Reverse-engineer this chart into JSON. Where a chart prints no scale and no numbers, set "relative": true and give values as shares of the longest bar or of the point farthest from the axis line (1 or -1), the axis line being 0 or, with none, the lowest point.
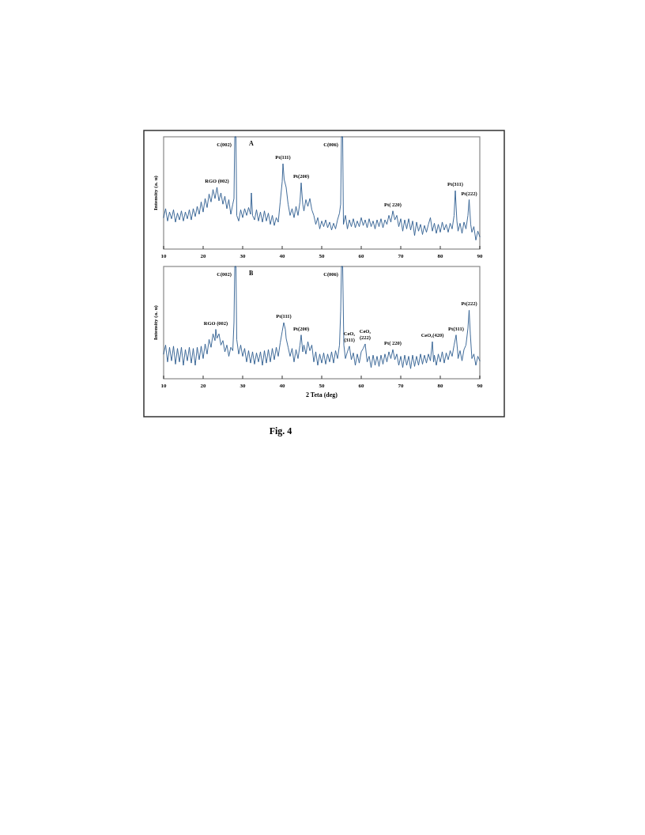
{
  "chart_data": [
    {
      "type": "line",
      "title": "A",
      "ylabel": "Intensity (a. u)",
      "relative": true,
      "color": "#2b5b8e",
      "xlim": [
        10,
        90
      ],
      "xticks": [
        10,
        20,
        30,
        40,
        50,
        60,
        70,
        80,
        90
      ],
      "x": [
        10,
        10.5,
        11,
        11.5,
        12,
        12.5,
        13,
        13.5,
        14,
        14.5,
        15,
        15.5,
        16,
        16.5,
        17,
        17.5,
        18,
        18.5,
        19,
        19.5,
        20,
        20.5,
        21,
        21.5,
        22,
        22.5,
        23,
        23.5,
        24,
        24.5,
        25,
        25.5,
        26,
        26.5,
        27,
        27.5,
        27.8,
        28,
        28.3,
        28.5,
        29,
        29.5,
        30,
        30.5,
        31,
        31.5,
        32,
        32.2,
        32.5,
        33,
        33.5,
        34,
        34.5,
        35,
        35.5,
        36,
        36.5,
        37,
        37.5,
        38,
        38.5,
        39,
        39.5,
        40,
        40.2,
        40.5,
        41,
        41.5,
        42,
        42.5,
        43,
        43.5,
        44,
        44.5,
        44.8,
        45.2,
        45.5,
        46,
        46.5,
        47,
        47.5,
        48,
        48.5,
        49,
        49.5,
        50,
        50.5,
        51,
        51.5,
        52,
        52.5,
        53,
        53.5,
        54,
        54.5,
        54.8,
        55,
        55.3,
        55.5,
        56,
        56.5,
        57,
        57.5,
        58,
        58.5,
        59,
        59.5,
        60,
        60.5,
        61,
        61.5,
        62,
        62.5,
        63,
        63.5,
        64,
        64.5,
        65,
        65.5,
        66,
        66.5,
        67,
        67.5,
        68,
        68.5,
        69,
        69.5,
        70,
        70.5,
        71,
        71.5,
        72,
        72.5,
        73,
        73.5,
        74,
        74.5,
        75,
        75.5,
        76,
        76.5,
        77,
        77.5,
        78,
        78.5,
        79,
        79.5,
        80,
        80.5,
        81,
        81.5,
        82,
        82.5,
        83,
        83.5,
        83.8,
        84.2,
        84.5,
        85,
        85.5,
        86,
        86.5,
        87,
        87.3,
        87.7,
        88,
        88.5,
        89,
        89.5,
        90
      ],
      "values": [
        0.28,
        0.36,
        0.25,
        0.33,
        0.27,
        0.35,
        0.24,
        0.32,
        0.26,
        0.34,
        0.25,
        0.33,
        0.27,
        0.35,
        0.26,
        0.36,
        0.29,
        0.38,
        0.31,
        0.42,
        0.33,
        0.45,
        0.37,
        0.49,
        0.42,
        0.53,
        0.45,
        0.55,
        0.43,
        0.5,
        0.4,
        0.47,
        0.36,
        0.44,
        0.31,
        0.4,
        0.45,
        1,
        1,
        0.3,
        0.25,
        0.35,
        0.28,
        0.36,
        0.3,
        0.37,
        0.31,
        0.5,
        0.3,
        0.26,
        0.35,
        0.25,
        0.33,
        0.24,
        0.34,
        0.25,
        0.32,
        0.22,
        0.3,
        0.21,
        0.28,
        0.24,
        0.42,
        0.6,
        0.76,
        0.62,
        0.55,
        0.4,
        0.3,
        0.36,
        0.28,
        0.38,
        0.3,
        0.42,
        0.59,
        0.4,
        0.34,
        0.44,
        0.38,
        0.45,
        0.35,
        0.3,
        0.22,
        0.28,
        0.18,
        0.25,
        0.2,
        0.26,
        0.19,
        0.24,
        0.17,
        0.23,
        0.18,
        0.26,
        0.32,
        0.4,
        1,
        1,
        0.22,
        0.3,
        0.18,
        0.26,
        0.2,
        0.27,
        0.19,
        0.25,
        0.2,
        0.28,
        0.21,
        0.26,
        0.19,
        0.27,
        0.2,
        0.25,
        0.18,
        0.26,
        0.2,
        0.27,
        0.19,
        0.26,
        0.22,
        0.3,
        0.24,
        0.34,
        0.26,
        0.3,
        0.2,
        0.27,
        0.16,
        0.26,
        0.18,
        0.27,
        0.17,
        0.25,
        0.12,
        0.24,
        0.16,
        0.22,
        0.13,
        0.21,
        0.15,
        0.22,
        0.28,
        0.16,
        0.23,
        0.14,
        0.22,
        0.15,
        0.24,
        0.17,
        0.22,
        0.15,
        0.23,
        0.18,
        0.3,
        0.52,
        0.25,
        0.16,
        0.23,
        0.14,
        0.24,
        0.18,
        0.3,
        0.44,
        0.22,
        0.15,
        0.2,
        0.08,
        0.16,
        0.11
      ],
      "annotations": [
        {
          "text": "RGO (002)",
          "x": 23.5,
          "y": 0.55
        },
        {
          "text": "C(002)",
          "x": 28,
          "y": 1
        },
        {
          "text": "C(006)",
          "x": 55,
          "y": 1
        },
        {
          "text": "Pt(111)",
          "x": 40.2,
          "y": 0.76
        },
        {
          "text": "Pt(200)",
          "x": 44.8,
          "y": 0.59
        },
        {
          "text": "Pt( 220)",
          "x": 68,
          "y": 0.34
        },
        {
          "text": "Pt(311)",
          "x": 83.8,
          "y": 0.52
        },
        {
          "text": "Pt(222)",
          "x": 87.3,
          "y": 0.44
        }
      ]
    },
    {
      "type": "line",
      "title": "B",
      "ylabel": "Intensity (a. u)",
      "xlabel": "2 Teta (deg)",
      "relative": true,
      "color": "#2b5b8e",
      "xlim": [
        10,
        90
      ],
      "xticks": [
        10,
        20,
        30,
        40,
        50,
        60,
        70,
        80,
        90
      ],
      "x": [
        10,
        10.5,
        11,
        11.5,
        12,
        12.5,
        13,
        13.5,
        14,
        14.5,
        15,
        15.5,
        16,
        16.5,
        17,
        17.5,
        18,
        18.5,
        19,
        19.5,
        20,
        20.5,
        21,
        21.5,
        22,
        22.5,
        23,
        23.2,
        23.5,
        24,
        24.5,
        25,
        25.5,
        26,
        26.5,
        27,
        27.5,
        27.8,
        28,
        28.3,
        28.5,
        29,
        29.5,
        30,
        30.5,
        31,
        31.5,
        32,
        32.5,
        33,
        33.5,
        34,
        34.5,
        35,
        35.5,
        36,
        36.5,
        37,
        37.5,
        38,
        38.5,
        39,
        39.5,
        40,
        40.4,
        40.8,
        41,
        41.5,
        42,
        42.5,
        43,
        43.5,
        44,
        44.5,
        44.8,
        45.2,
        45.5,
        46,
        46.5,
        47,
        47.5,
        48,
        48.5,
        49,
        49.5,
        50,
        50.5,
        51,
        51.5,
        52,
        52.5,
        53,
        53.5,
        54,
        54.5,
        54.8,
        55,
        55.3,
        55.6,
        56,
        56.5,
        57,
        57.5,
        58,
        58.5,
        59,
        59.5,
        60,
        60.5,
        61,
        61.5,
        62,
        62.5,
        63,
        63.5,
        64,
        64.5,
        65,
        65.5,
        66,
        66.5,
        67,
        67.5,
        68,
        68.5,
        69,
        69.5,
        70,
        70.5,
        71,
        71.5,
        72,
        72.5,
        73,
        73.5,
        74,
        74.5,
        75,
        75.5,
        76,
        76.5,
        77,
        77.5,
        78,
        78.3,
        78.5,
        79,
        79.5,
        80,
        80.5,
        81,
        81.5,
        82,
        82.5,
        83,
        83.5,
        84,
        84.4,
        84.5,
        85,
        85.5,
        86,
        86.5,
        87,
        87.3,
        87.6,
        88,
        88.5,
        89,
        89.5,
        90
      ],
      "values": [
        0.22,
        0.3,
        0.15,
        0.28,
        0.16,
        0.29,
        0.13,
        0.27,
        0.15,
        0.28,
        0.12,
        0.26,
        0.16,
        0.28,
        0.14,
        0.27,
        0.12,
        0.28,
        0.17,
        0.29,
        0.18,
        0.31,
        0.22,
        0.35,
        0.28,
        0.4,
        0.34,
        0.44,
        0.36,
        0.4,
        0.3,
        0.34,
        0.24,
        0.3,
        0.2,
        0.28,
        0.25,
        0.5,
        1,
        1,
        0.35,
        0.22,
        0.3,
        0.2,
        0.27,
        0.15,
        0.25,
        0.14,
        0.24,
        0.13,
        0.23,
        0.15,
        0.24,
        0.12,
        0.25,
        0.14,
        0.26,
        0.15,
        0.27,
        0.17,
        0.28,
        0.2,
        0.32,
        0.42,
        0.5,
        0.44,
        0.36,
        0.28,
        0.2,
        0.27,
        0.15,
        0.26,
        0.18,
        0.3,
        0.39,
        0.24,
        0.3,
        0.22,
        0.33,
        0.25,
        0.3,
        0.15,
        0.24,
        0.12,
        0.22,
        0.14,
        0.23,
        0.13,
        0.22,
        0.15,
        0.24,
        0.14,
        0.25,
        0.18,
        0.3,
        0.6,
        1,
        1,
        0.3,
        0.18,
        0.24,
        0.29,
        0.17,
        0.23,
        0.12,
        0.22,
        0.14,
        0.24,
        0.27,
        0.31,
        0.15,
        0.2,
        0.1,
        0.21,
        0.12,
        0.2,
        0.11,
        0.21,
        0.13,
        0.22,
        0.15,
        0.24,
        0.18,
        0.26,
        0.17,
        0.22,
        0.12,
        0.2,
        0.1,
        0.21,
        0.12,
        0.2,
        0.09,
        0.21,
        0.11,
        0.2,
        0.12,
        0.22,
        0.13,
        0.21,
        0.14,
        0.22,
        0.16,
        0.33,
        0.15,
        0.21,
        0.12,
        0.22,
        0.15,
        0.24,
        0.14,
        0.23,
        0.17,
        0.25,
        0.2,
        0.3,
        0.39,
        0.24,
        0.18,
        0.25,
        0.16,
        0.26,
        0.3,
        0.45,
        0.61,
        0.4,
        0.18,
        0.22,
        0.12,
        0.2,
        0.16
      ],
      "annotations": [
        {
          "text": "RGO (002)",
          "x": 23.2,
          "y": 0.44
        },
        {
          "text": "C(002)",
          "x": 28,
          "y": 1
        },
        {
          "text": "C(006)",
          "x": 55,
          "y": 1
        },
        {
          "text": "Pt(111)",
          "x": 40.4,
          "y": 0.5
        },
        {
          "text": "Pt(200)",
          "x": 44.8,
          "y": 0.39
        },
        {
          "text": "CeO₂\n(311)",
          "x": 57,
          "y": 0.29
        },
        {
          "text": "CeO₂\n(222)",
          "x": 61,
          "y": 0.31
        },
        {
          "text": "Pt( 220)",
          "x": 68,
          "y": 0.26
        },
        {
          "text": "CeO₂(420)",
          "x": 78,
          "y": 0.33
        },
        {
          "text": "Pt(311)",
          "x": 84,
          "y": 0.39
        },
        {
          "text": "Pt(222)",
          "x": 87.3,
          "y": 0.61
        },
        "Fig. 4"
      ]
    }
  ]
}
